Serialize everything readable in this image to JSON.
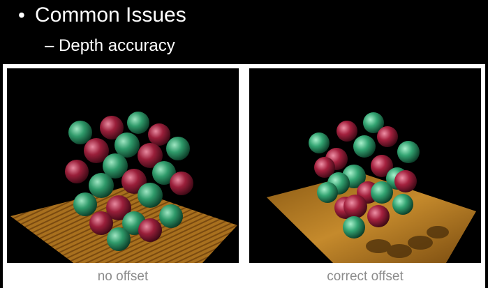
{
  "slide": {
    "bullet_mark": "•",
    "bullet_text": "Common Issues",
    "sub_text": "– Depth accuracy"
  },
  "panels": [
    {
      "caption": "no offset"
    },
    {
      "caption": "correct offset"
    }
  ],
  "colors": {
    "background": "#000000",
    "frame": "#ffffff",
    "caption": "#8c8c8c",
    "sphere_green": "#2f9a6a",
    "sphere_red": "#9a1f3a",
    "floor": "#a8701e"
  }
}
